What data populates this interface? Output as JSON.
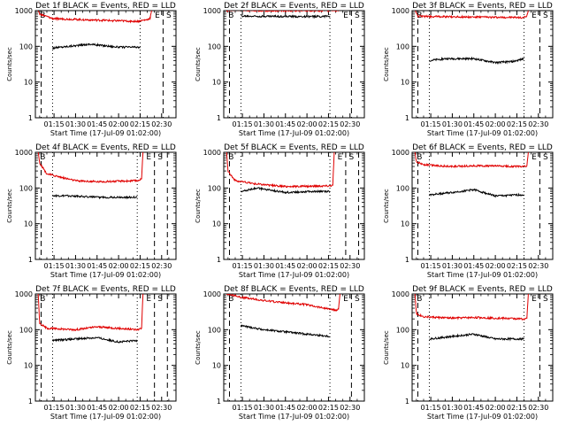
{
  "figure": {
    "x_tick_labels": [
      "01:15",
      "01:30",
      "01:45",
      "02:00",
      "02:15",
      "02:30"
    ],
    "y_tick_labels": [
      "1",
      "10",
      "100",
      "1000"
    ],
    "xlabel": "Start Time (17-Jul-09 01:02:00)",
    "ylabel": "Counts/sec",
    "flag_labels": [
      "E",
      "S"
    ],
    "colors": {
      "events": "#000000",
      "lld": "#e00000",
      "axes": "#000000"
    }
  },
  "chart_data": [
    {
      "type": "line",
      "title": "Det 1f BLACK = Events, RED = LLD",
      "y_scale": "log",
      "ylim": [
        1,
        1000
      ],
      "x_time_range": [
        "01:02",
        "02:40"
      ],
      "series": [
        {
          "name": "Events",
          "color": "#000000",
          "x": [
            "01:14",
            "01:25",
            "01:40",
            "02:00",
            "02:13",
            "02:15"
          ],
          "y": [
            90,
            100,
            115,
            95,
            95,
            90
          ]
        },
        {
          "name": "LLD",
          "color": "#e00000",
          "x": [
            "01:04",
            "01:05",
            "01:14",
            "01:40",
            "02:13",
            "02:20",
            "02:22",
            "02:23"
          ],
          "y": [
            1000,
            800,
            600,
            550,
            500,
            560,
            620,
            1000
          ]
        }
      ]
    },
    {
      "type": "line",
      "title": "Det 2f BLACK = Events, RED = LLD",
      "y_scale": "log",
      "ylim": [
        1,
        1000
      ],
      "x_time_range": [
        "01:02",
        "02:40"
      ],
      "series": [
        {
          "name": "Events",
          "color": "#000000",
          "x": [
            "01:14",
            "01:30",
            "02:00",
            "02:16"
          ],
          "y": [
            700,
            700,
            680,
            700
          ]
        },
        {
          "name": "LLD",
          "color": "#e00000",
          "x": [
            "01:04",
            "01:05",
            "01:07",
            "01:30",
            "02:00",
            "02:20",
            "02:22",
            "02:23"
          ],
          "y": [
            1000,
            1000,
            1050,
            1000,
            1000,
            1000,
            1050,
            1000
          ]
        }
      ]
    },
    {
      "type": "line",
      "title": "Det 3f BLACK = Events, RED = LLD",
      "y_scale": "log",
      "ylim": [
        1,
        1000
      ],
      "x_time_range": [
        "01:02",
        "02:40"
      ],
      "series": [
        {
          "name": "Events",
          "color": "#000000",
          "x": [
            "01:14",
            "01:25",
            "01:45",
            "02:00",
            "02:13",
            "02:20"
          ],
          "y": [
            40,
            45,
            45,
            35,
            38,
            45
          ]
        },
        {
          "name": "LLD",
          "color": "#e00000",
          "x": [
            "01:04",
            "01:06",
            "01:20",
            "02:00",
            "02:20",
            "02:22",
            "02:23"
          ],
          "y": [
            1000,
            700,
            680,
            650,
            640,
            700,
            1000
          ]
        }
      ]
    },
    {
      "type": "line",
      "title": "Det 4f BLACK = Events, RED = LLD",
      "y_scale": "log",
      "ylim": [
        1,
        1000
      ],
      "x_time_range": [
        "01:02",
        "02:40"
      ],
      "series": [
        {
          "name": "Events",
          "color": "#000000",
          "x": [
            "01:14",
            "01:30",
            "01:45",
            "02:00",
            "02:13"
          ],
          "y": [
            60,
            60,
            55,
            55,
            55
          ]
        },
        {
          "name": "LLD",
          "color": "#e00000",
          "x": [
            "01:04",
            "01:05",
            "01:10",
            "01:30",
            "01:45",
            "02:13",
            "02:16",
            "02:17"
          ],
          "y": [
            1000,
            500,
            250,
            160,
            150,
            160,
            180,
            1000
          ]
        }
      ]
    },
    {
      "type": "line",
      "title": "Det 5f BLACK = Events, RED = LLD",
      "y_scale": "log",
      "ylim": [
        1,
        1000
      ],
      "x_time_range": [
        "01:02",
        "02:40"
      ],
      "series": [
        {
          "name": "Events",
          "color": "#000000",
          "x": [
            "01:14",
            "01:25",
            "01:45",
            "02:00",
            "02:16"
          ],
          "y": [
            80,
            100,
            75,
            80,
            80
          ]
        },
        {
          "name": "LLD",
          "color": "#e00000",
          "x": [
            "01:04",
            "01:05",
            "01:10",
            "01:25",
            "01:45",
            "02:15",
            "02:18",
            "02:19"
          ],
          "y": [
            1000,
            300,
            160,
            130,
            110,
            115,
            120,
            1000
          ]
        }
      ]
    },
    {
      "type": "line",
      "title": "Det 6f BLACK = Events, RED = LLD",
      "y_scale": "log",
      "ylim": [
        1,
        1000
      ],
      "x_time_range": [
        "01:02",
        "02:40"
      ],
      "series": [
        {
          "name": "Events",
          "color": "#000000",
          "x": [
            "01:14",
            "01:30",
            "01:45",
            "02:00",
            "02:20"
          ],
          "y": [
            65,
            75,
            90,
            60,
            65
          ]
        },
        {
          "name": "LLD",
          "color": "#e00000",
          "x": [
            "01:04",
            "01:05",
            "01:10",
            "01:30",
            "01:45",
            "02:20",
            "02:22",
            "02:23"
          ],
          "y": [
            1000,
            550,
            450,
            400,
            420,
            400,
            420,
            1000
          ]
        }
      ]
    },
    {
      "type": "line",
      "title": "Det 7f BLACK = Events, RED = LLD",
      "y_scale": "log",
      "ylim": [
        1,
        1000
      ],
      "x_time_range": [
        "01:02",
        "02:40"
      ],
      "series": [
        {
          "name": "Events",
          "color": "#000000",
          "x": [
            "01:14",
            "01:30",
            "01:45",
            "02:00",
            "02:13"
          ],
          "y": [
            50,
            55,
            60,
            45,
            50
          ]
        },
        {
          "name": "LLD",
          "color": "#e00000",
          "x": [
            "01:04",
            "01:05",
            "01:10",
            "01:30",
            "01:45",
            "02:13",
            "02:16",
            "02:17"
          ],
          "y": [
            1000,
            150,
            110,
            100,
            120,
            100,
            110,
            1000
          ]
        }
      ]
    },
    {
      "type": "line",
      "title": "Det 8f BLACK = Events, RED = LLD",
      "y_scale": "log",
      "ylim": [
        1,
        1000
      ],
      "x_time_range": [
        "01:02",
        "02:40"
      ],
      "series": [
        {
          "name": "Events",
          "color": "#000000",
          "x": [
            "01:14",
            "01:30",
            "02:00",
            "02:16"
          ],
          "y": [
            130,
            100,
            75,
            65
          ]
        },
        {
          "name": "LLD",
          "color": "#e00000",
          "x": [
            "01:04",
            "01:05",
            "01:15",
            "01:30",
            "02:00",
            "02:20",
            "02:22",
            "02:23"
          ],
          "y": [
            1000,
            1000,
            800,
            650,
            500,
            350,
            380,
            1000
          ]
        }
      ]
    },
    {
      "type": "line",
      "title": "Det 9f BLACK = Events, RED = LLD",
      "y_scale": "log",
      "ylim": [
        1,
        1000
      ],
      "x_time_range": [
        "01:02",
        "02:40"
      ],
      "series": [
        {
          "name": "Events",
          "color": "#000000",
          "x": [
            "01:14",
            "01:30",
            "01:45",
            "02:00",
            "02:20"
          ],
          "y": [
            55,
            65,
            75,
            55,
            55
          ]
        },
        {
          "name": "LLD",
          "color": "#e00000",
          "x": [
            "01:04",
            "01:05",
            "01:10",
            "01:30",
            "01:45",
            "02:20",
            "02:22",
            "02:23"
          ],
          "y": [
            1000,
            280,
            230,
            210,
            220,
            200,
            210,
            1000
          ]
        }
      ]
    }
  ]
}
